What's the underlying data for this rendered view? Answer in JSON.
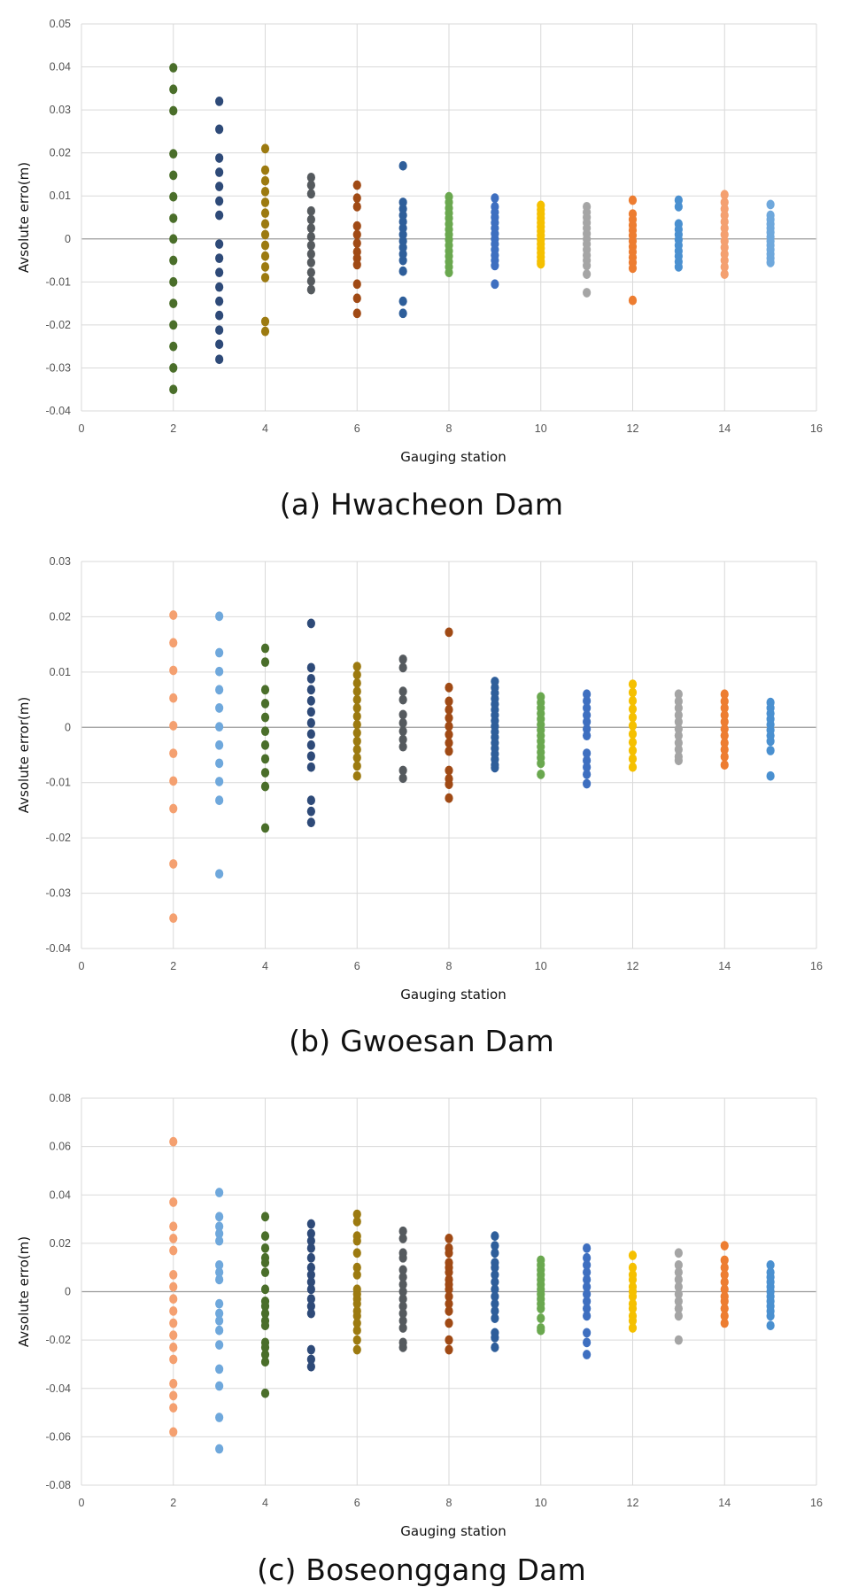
{
  "chart_data": [
    {
      "type": "scatter",
      "caption": "(a) Hwacheon Dam",
      "xlabel": "Gauging station",
      "ylabel": "Avsolute erro(m)",
      "xlim": [
        0,
        16
      ],
      "ylim": [
        -0.04,
        0.05
      ],
      "xticks": [
        0,
        2,
        4,
        6,
        8,
        10,
        12,
        14,
        16
      ],
      "xtick_labels": [
        "0",
        "2",
        "4",
        "6",
        "8",
        "10",
        "12",
        "14",
        "16"
      ],
      "yticks": [
        -0.04,
        -0.03,
        -0.02,
        -0.01,
        0,
        0.01,
        0.02,
        0.03,
        0.04,
        0.05
      ],
      "ytick_labels": [
        "-0.04",
        "-0.03",
        "-0.02",
        "-0.01",
        "0",
        "0.01",
        "0.02",
        "0.03",
        "0.04",
        "0.05"
      ],
      "series": [
        {
          "x": 2,
          "color": "#4a6e2a",
          "values": [
            0.0398,
            0.0348,
            0.0298,
            0.0198,
            0.0148,
            0.0098,
            0.0048,
            0,
            -0.005,
            -0.01,
            -0.015,
            -0.02,
            -0.025,
            -0.03,
            -0.035
          ]
        },
        {
          "x": 3,
          "color": "#2e4a78",
          "values": [
            0.032,
            0.0255,
            0.0188,
            0.0155,
            0.0122,
            0.0088,
            0.0055,
            -0.0012,
            -0.0045,
            -0.0078,
            -0.0112,
            -0.0145,
            -0.0178,
            -0.0212,
            -0.0245,
            -0.028
          ]
        },
        {
          "x": 4,
          "color": "#9c7a10",
          "values": [
            0.021,
            0.016,
            0.0135,
            0.011,
            0.0085,
            0.006,
            0.0035,
            0.001,
            -0.0015,
            -0.004,
            -0.0065,
            -0.009,
            -0.0192,
            -0.0215
          ]
        },
        {
          "x": 5,
          "color": "#555a5e",
          "values": [
            0.0143,
            0.0125,
            0.0105,
            0.0065,
            0.0045,
            0.0025,
            0.0005,
            -0.0015,
            -0.0035,
            -0.0055,
            -0.0078,
            -0.0098,
            -0.0118
          ]
        },
        {
          "x": 6,
          "color": "#a04a15",
          "values": [
            0.0125,
            0.0095,
            0.0075,
            0.003,
            0.001,
            -0.001,
            -0.003,
            -0.0045,
            -0.006,
            -0.0105,
            -0.0138,
            -0.0173
          ]
        },
        {
          "x": 7,
          "color": "#2e5e9a",
          "values": [
            0.017,
            0.0085,
            0.007,
            0.0055,
            0.004,
            0.0025,
            0.001,
            -0.0005,
            -0.002,
            -0.0035,
            -0.005,
            -0.0075,
            -0.0145,
            -0.0173
          ]
        },
        {
          "x": 8,
          "color": "#6aa84f",
          "values": [
            0.0098,
            0.0085,
            0.0072,
            0.006,
            0.0048,
            0.0035,
            0.0022,
            0.001,
            -0.0002,
            -0.0015,
            -0.0028,
            -0.004,
            -0.0053,
            -0.0065,
            -0.0078
          ]
        },
        {
          "x": 9,
          "color": "#3e6fc0",
          "values": [
            0.0095,
            0.0075,
            0.0062,
            0.005,
            0.0038,
            0.0025,
            0.0012,
            0,
            -0.0012,
            -0.0025,
            -0.0038,
            -0.005,
            -0.0062,
            -0.0105
          ]
        },
        {
          "x": 10,
          "color": "#f5c000",
          "values": [
            0.0078,
            0.0068,
            0.0058,
            0.0048,
            0.0038,
            0.0028,
            0.0018,
            0.0008,
            -0.0002,
            -0.0012,
            -0.0022,
            -0.0032,
            -0.0042,
            -0.0052,
            -0.0058
          ]
        },
        {
          "x": 11,
          "color": "#a5a5a5",
          "values": [
            0.0075,
            0.0062,
            0.005,
            0.0038,
            0.0025,
            0.0012,
            0,
            -0.0012,
            -0.0025,
            -0.0038,
            -0.005,
            -0.0062,
            -0.0082,
            -0.0125
          ]
        },
        {
          "x": 12,
          "color": "#ed7d31",
          "values": [
            0.009,
            0.0058,
            0.0045,
            0.0032,
            0.002,
            0.0008,
            -0.0005,
            -0.0018,
            -0.003,
            -0.0043,
            -0.0055,
            -0.0068,
            -0.0143
          ]
        },
        {
          "x": 13,
          "color": "#4a90d0",
          "values": [
            0.009,
            0.0075,
            0.0035,
            0.0022,
            0.001,
            -0.0002,
            -0.0015,
            -0.0028,
            -0.004,
            -0.0053,
            -0.0065
          ]
        },
        {
          "x": 14,
          "color": "#f4a070",
          "values": [
            0.0103,
            0.0085,
            0.007,
            0.0055,
            0.004,
            0.0025,
            0.001,
            -0.0005,
            -0.002,
            -0.0035,
            -0.005,
            -0.0065,
            -0.0082
          ]
        },
        {
          "x": 15,
          "color": "#6fa8dc",
          "values": [
            0.008,
            0.0055,
            0.0045,
            0.0035,
            0.0025,
            0.0015,
            0.0005,
            -0.0005,
            -0.0015,
            -0.0025,
            -0.0035,
            -0.0045,
            -0.0055
          ]
        }
      ]
    },
    {
      "type": "scatter",
      "caption": "(b) Gwoesan Dam",
      "xlabel": "Gauging station",
      "ylabel": "Avsolute error(m)",
      "xlim": [
        0,
        16
      ],
      "ylim": [
        -0.04,
        0.03
      ],
      "xticks": [
        0,
        2,
        4,
        6,
        8,
        10,
        12,
        14,
        16
      ],
      "xtick_labels": [
        "0",
        "2",
        "4",
        "6",
        "8",
        "10",
        "12",
        "14",
        "16"
      ],
      "yticks": [
        -0.04,
        -0.03,
        -0.02,
        -0.01,
        0,
        0.01,
        0.02,
        0.03
      ],
      "ytick_labels": [
        "-0.04",
        "-0.03",
        "-0.02",
        "-0.01",
        "0",
        "0.01",
        "0.02",
        "0.03"
      ],
      "series": [
        {
          "x": 2,
          "color": "#f4a070",
          "values": [
            0.0203,
            0.0153,
            0.0103,
            0.0053,
            0.0003,
            -0.0047,
            -0.0097,
            -0.0147,
            -0.0247,
            -0.0345
          ]
        },
        {
          "x": 3,
          "color": "#6fa8dc",
          "values": [
            0.0201,
            0.0135,
            0.0101,
            0.0068,
            0.0035,
            0.0001,
            -0.0032,
            -0.0065,
            -0.0098,
            -0.0132,
            -0.0265
          ]
        },
        {
          "x": 4,
          "color": "#4a6e2a",
          "values": [
            0.0143,
            0.0118,
            0.0068,
            0.0043,
            0.0018,
            -0.0007,
            -0.0032,
            -0.0057,
            -0.0082,
            -0.0107,
            -0.0182
          ]
        },
        {
          "x": 5,
          "color": "#2e4a78",
          "values": [
            0.0188,
            0.0108,
            0.0088,
            0.0068,
            0.0048,
            0.0028,
            0.0008,
            -0.0012,
            -0.0032,
            -0.0052,
            -0.0072,
            -0.0132,
            -0.0152,
            -0.0172
          ]
        },
        {
          "x": 6,
          "color": "#9c7a10",
          "values": [
            0.011,
            0.0095,
            0.008,
            0.0065,
            0.005,
            0.0035,
            0.002,
            0.0005,
            -0.001,
            -0.0025,
            -0.004,
            -0.0055,
            -0.007,
            -0.0088
          ]
        },
        {
          "x": 7,
          "color": "#555a5e",
          "values": [
            0.0123,
            0.0108,
            0.0065,
            0.005,
            0.0023,
            0.0008,
            -0.0007,
            -0.0022,
            -0.0035,
            -0.0078,
            -0.0092
          ]
        },
        {
          "x": 8,
          "color": "#a04a15",
          "values": [
            0.0172,
            0.0072,
            0.0047,
            0.0032,
            0.0017,
            0.0002,
            -0.0013,
            -0.0028,
            -0.0043,
            -0.0078,
            -0.0093,
            -0.0103,
            -0.0128
          ]
        },
        {
          "x": 9,
          "color": "#2e5e9a",
          "values": [
            0.0083,
            0.0072,
            0.0062,
            0.0052,
            0.0042,
            0.0032,
            0.0022,
            0.0012,
            0.0002,
            -0.0008,
            -0.0018,
            -0.0028,
            -0.0038,
            -0.0048,
            -0.0058,
            -0.0068,
            -0.0073
          ]
        },
        {
          "x": 10,
          "color": "#6aa84f",
          "values": [
            0.0055,
            0.0045,
            0.0035,
            0.0025,
            0.0015,
            0.0005,
            -0.0005,
            -0.0015,
            -0.0025,
            -0.0035,
            -0.0045,
            -0.0055,
            -0.0065,
            -0.0085
          ]
        },
        {
          "x": 11,
          "color": "#3e6fc0",
          "values": [
            0.006,
            0.0048,
            0.0035,
            0.0022,
            0.001,
            -0.0003,
            -0.0015,
            -0.0047,
            -0.006,
            -0.0072,
            -0.0085,
            -0.0102
          ]
        },
        {
          "x": 12,
          "color": "#f5c000",
          "values": [
            0.0078,
            0.0063,
            0.0048,
            0.0033,
            0.0018,
            0.0003,
            -0.0012,
            -0.0027,
            -0.0042,
            -0.0057,
            -0.0072
          ]
        },
        {
          "x": 13,
          "color": "#a5a5a5",
          "values": [
            0.006,
            0.0047,
            0.0035,
            0.0022,
            0.001,
            -0.0003,
            -0.0015,
            -0.0028,
            -0.004,
            -0.0053,
            -0.006
          ]
        },
        {
          "x": 14,
          "color": "#ed7d31",
          "values": [
            0.006,
            0.0047,
            0.0035,
            0.0022,
            0.001,
            -0.0003,
            -0.0015,
            -0.0028,
            -0.004,
            -0.0053,
            -0.0068
          ]
        },
        {
          "x": 15,
          "color": "#4a90d0",
          "values": [
            0.0045,
            0.0035,
            0.0025,
            0.0015,
            0.0005,
            -0.0005,
            -0.0015,
            -0.0025,
            -0.0042,
            -0.0088
          ]
        }
      ]
    },
    {
      "type": "scatter",
      "caption": "(c) Boseonggang Dam",
      "xlabel": "Gauging station",
      "ylabel": "Avsolute erro(m)",
      "xlim": [
        0,
        16
      ],
      "ylim": [
        -0.08,
        0.08
      ],
      "xticks": [
        0,
        2,
        4,
        6,
        8,
        10,
        12,
        14,
        16
      ],
      "xtick_labels": [
        "0",
        "2",
        "4",
        "6",
        "8",
        "10",
        "12",
        "14",
        "16"
      ],
      "yticks": [
        -0.08,
        -0.06,
        -0.04,
        -0.02,
        0,
        0.02,
        0.04,
        0.06,
        0.08
      ],
      "ytick_labels": [
        "-0.08",
        "-0.06",
        "-0.04",
        "-0.02",
        "0",
        "0.02",
        "0.04",
        "0.06",
        "0.08"
      ],
      "series": [
        {
          "x": 2,
          "color": "#f4a070",
          "values": [
            0.062,
            0.037,
            0.027,
            0.022,
            0.017,
            0.007,
            0.002,
            -0.003,
            -0.008,
            -0.013,
            -0.018,
            -0.023,
            -0.028,
            -0.038,
            -0.043,
            -0.048,
            -0.058
          ]
        },
        {
          "x": 3,
          "color": "#6fa8dc",
          "values": [
            0.041,
            0.031,
            0.027,
            0.024,
            0.021,
            0.011,
            0.008,
            0.005,
            -0.005,
            -0.009,
            -0.012,
            -0.016,
            -0.022,
            -0.032,
            -0.039,
            -0.052,
            -0.065
          ]
        },
        {
          "x": 4,
          "color": "#4a6e2a",
          "values": [
            0.031,
            0.023,
            0.018,
            0.014,
            0.012,
            0.008,
            0.001,
            -0.004,
            -0.006,
            -0.009,
            -0.012,
            -0.014,
            -0.021,
            -0.023,
            -0.026,
            -0.029,
            -0.042
          ]
        },
        {
          "x": 5,
          "color": "#2e4a78",
          "values": [
            0.028,
            0.024,
            0.021,
            0.018,
            0.014,
            0.01,
            0.007,
            0.004,
            0.001,
            -0.003,
            -0.006,
            -0.009,
            -0.024,
            -0.028,
            -0.031
          ]
        },
        {
          "x": 6,
          "color": "#9c7a10",
          "values": [
            0.032,
            0.029,
            0.023,
            0.021,
            0.016,
            0.01,
            0.007,
            0.001,
            -0.001,
            -0.003,
            -0.005,
            -0.008,
            -0.01,
            -0.013,
            -0.016,
            -0.02,
            -0.024
          ]
        },
        {
          "x": 7,
          "color": "#555a5e",
          "values": [
            0.025,
            0.022,
            0.016,
            0.014,
            0.009,
            0.006,
            0.003,
            0,
            -0.003,
            -0.006,
            -0.009,
            -0.012,
            -0.015,
            -0.021,
            -0.023
          ]
        },
        {
          "x": 8,
          "color": "#a04a15",
          "values": [
            0.022,
            0.018,
            0.016,
            0.012,
            0.01,
            0.008,
            0.005,
            0.003,
            0.001,
            -0.002,
            -0.005,
            -0.008,
            -0.013,
            -0.02,
            -0.024
          ]
        },
        {
          "x": 9,
          "color": "#2e5e9a",
          "values": [
            0.023,
            0.019,
            0.016,
            0.012,
            0.01,
            0.007,
            0.004,
            0.001,
            -0.002,
            -0.005,
            -0.008,
            -0.011,
            -0.017,
            -0.019,
            -0.023
          ]
        },
        {
          "x": 10,
          "color": "#6aa84f",
          "values": [
            0.013,
            0.011,
            0.009,
            0.007,
            0.005,
            0.003,
            0.001,
            -0.001,
            -0.003,
            -0.005,
            -0.007,
            -0.011,
            -0.015,
            -0.016
          ]
        },
        {
          "x": 11,
          "color": "#3e6fc0",
          "values": [
            0.018,
            0.014,
            0.011,
            0.008,
            0.005,
            0.002,
            -0.001,
            -0.004,
            -0.007,
            -0.01,
            -0.017,
            -0.021,
            -0.026
          ]
        },
        {
          "x": 12,
          "color": "#f5c000",
          "values": [
            0.015,
            0.01,
            0.007,
            0.005,
            0.002,
            0,
            -0.002,
            -0.005,
            -0.007,
            -0.01,
            -0.012,
            -0.015
          ]
        },
        {
          "x": 13,
          "color": "#a5a5a5",
          "values": [
            0.016,
            0.011,
            0.008,
            0.005,
            0.002,
            -0.001,
            -0.004,
            -0.007,
            -0.01,
            -0.02
          ]
        },
        {
          "x": 14,
          "color": "#ed7d31",
          "values": [
            0.019,
            0.013,
            0.01,
            0.007,
            0.004,
            0.001,
            -0.002,
            -0.004,
            -0.007,
            -0.01,
            -0.013
          ]
        },
        {
          "x": 15,
          "color": "#4a90d0",
          "values": [
            0.011,
            0.008,
            0.006,
            0.004,
            0.002,
            0,
            -0.002,
            -0.004,
            -0.006,
            -0.008,
            -0.01,
            -0.014
          ]
        }
      ]
    }
  ]
}
